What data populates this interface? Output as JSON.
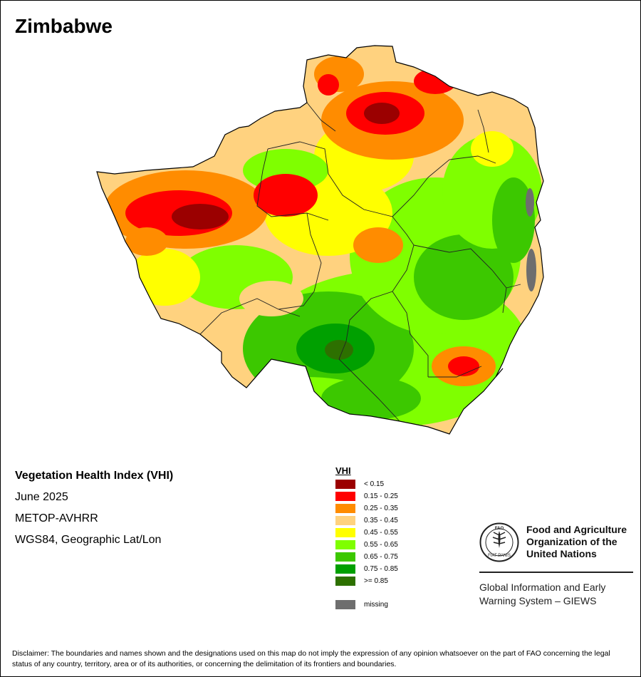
{
  "map": {
    "title": "Zimbabwe",
    "index_name": "Vegetation Health Index (VHI)",
    "period": "June 2025",
    "sensor": "METOP-AVHRR",
    "projection": "WGS84, Geographic Lat/Lon"
  },
  "legend": {
    "title": "VHI",
    "classes": [
      {
        "label": "< 0.15",
        "color": "#9b0000"
      },
      {
        "label": "0.15 - 0.25",
        "color": "#ff0000"
      },
      {
        "label": "0.25 - 0.35",
        "color": "#ff8c00"
      },
      {
        "label": "0.35 - 0.45",
        "color": "#ffd27f"
      },
      {
        "label": "0.45 - 0.55",
        "color": "#ffff00"
      },
      {
        "label": "0.55 - 0.65",
        "color": "#7fff00"
      },
      {
        "label": "0.65 - 0.75",
        "color": "#3cc800"
      },
      {
        "label": "0.75 - 0.85",
        "color": "#00a000"
      },
      {
        "label": ">= 0.85",
        "color": "#2d7000"
      }
    ],
    "missing": {
      "label": "missing",
      "color": "#6e6e6e"
    }
  },
  "org": {
    "name_line1": "Food and Agriculture",
    "name_line2": "Organization of the",
    "name_line3": "United Nations",
    "system_line1": "Global Information and Early",
    "system_line2": "Warning System – GIEWS",
    "logo_text": "FAO",
    "logo_motto": "FIAT PANIS"
  },
  "disclaimer": "Disclaimer: The boundaries and names shown and the designations used on this map do not imply the expression of any opinion whatsoever on the part of FAO concerning the legal status of any country, territory, area or of its authorities, or concerning the delimitation of its frontiers and boundaries."
}
